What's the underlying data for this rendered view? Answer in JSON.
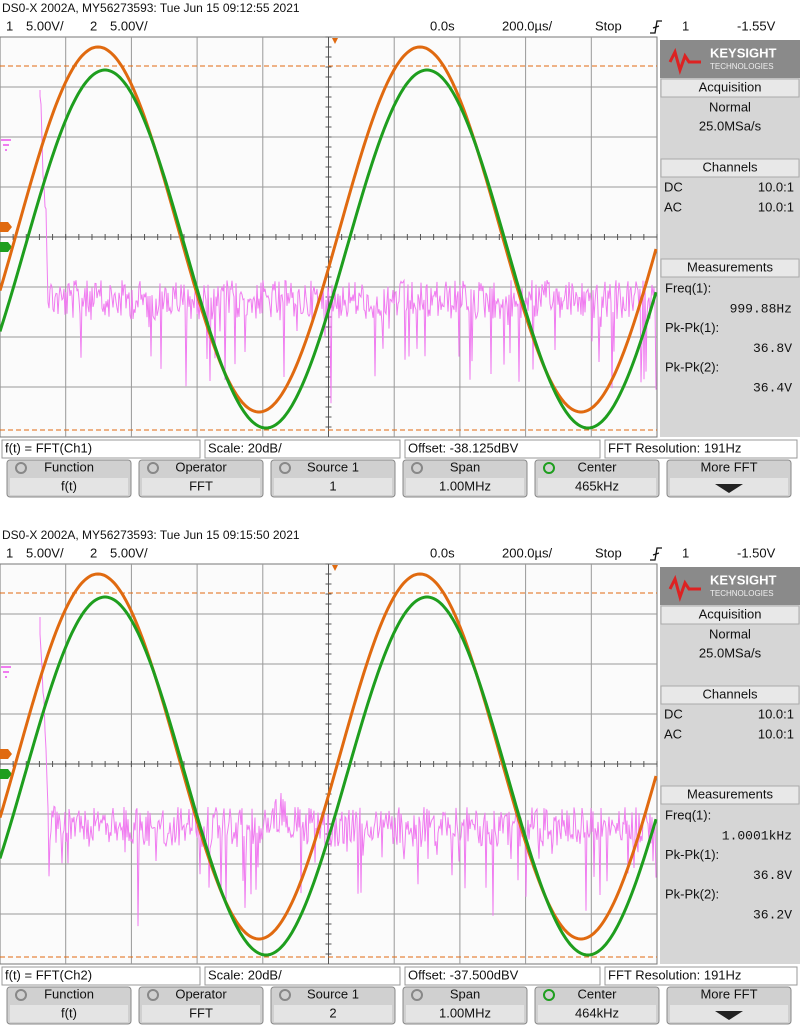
{
  "screens": [
    {
      "header": "DS0-X 2002A, MY56273593: Tue Jun 15 09:12:55 2021",
      "status": {
        "ch1_label": "1",
        "ch1_scale": "5.00V/",
        "ch2_label": "2",
        "ch2_scale": "5.00V/",
        "time_offset": "0.0s",
        "time_scale": "200.0µs/",
        "run_state": "Stop",
        "trigger_source": "1",
        "trigger_level": "-1.55V"
      },
      "panel": {
        "brand": "KEYSIGHT",
        "brand_sub": "TECHNOLOGIES",
        "acquisition": {
          "title": "Acquisition",
          "mode": "Normal",
          "rate": "25.0MSa/s"
        },
        "channels": {
          "title": "Channels",
          "rows": [
            {
              "coupling": "DC",
              "probe": "10.0:1"
            },
            {
              "coupling": "AC",
              "probe": "10.0:1"
            }
          ]
        },
        "measurements": {
          "title": "Measurements",
          "items": [
            {
              "label": "Freq(1):",
              "value": "999.88Hz"
            },
            {
              "label": "Pk-Pk(1):",
              "value": "36.8V"
            },
            {
              "label": "Pk-Pk(2):",
              "value": "36.4V"
            }
          ]
        }
      },
      "math_bar": {
        "function": "f(t) = FFT(Ch1)",
        "scale": "Scale: 20dB/",
        "offset": "Offset: -38.125dBV",
        "resolution": "FFT Resolution: 191Hz"
      },
      "softkeys": [
        {
          "label": "Function",
          "value": "f(t)"
        },
        {
          "label": "Operator",
          "value": "FFT"
        },
        {
          "label": "Source 1",
          "value": "1"
        },
        {
          "label": "Span",
          "value": "1.00MHz"
        },
        {
          "label": "Center",
          "value": "465kHz"
        },
        {
          "label": "More FFT"
        }
      ]
    },
    {
      "header": "DS0-X 2002A, MY56273593: Tue Jun 15 09:15:50 2021",
      "status": {
        "ch1_label": "1",
        "ch1_scale": "5.00V/",
        "ch2_label": "2",
        "ch2_scale": "5.00V/",
        "time_offset": "0.0s",
        "time_scale": "200.0µs/",
        "run_state": "Stop",
        "trigger_source": "1",
        "trigger_level": "-1.50V"
      },
      "panel": {
        "brand": "KEYSIGHT",
        "brand_sub": "TECHNOLOGIES",
        "acquisition": {
          "title": "Acquisition",
          "mode": "Normal",
          "rate": "25.0MSa/s"
        },
        "channels": {
          "title": "Channels",
          "rows": [
            {
              "coupling": "DC",
              "probe": "10.0:1"
            },
            {
              "coupling": "AC",
              "probe": "10.0:1"
            }
          ]
        },
        "measurements": {
          "title": "Measurements",
          "items": [
            {
              "label": "Freq(1):",
              "value": "1.0001kHz"
            },
            {
              "label": "Pk-Pk(1):",
              "value": "36.8V"
            },
            {
              "label": "Pk-Pk(2):",
              "value": "36.2V"
            }
          ]
        }
      },
      "math_bar": {
        "function": "f(t) = FFT(Ch2)",
        "scale": "Scale: 20dB/",
        "offset": "Offset: -37.500dBV",
        "resolution": "FFT Resolution: 191Hz"
      },
      "softkeys": [
        {
          "label": "Function",
          "value": "f(t)"
        },
        {
          "label": "Operator",
          "value": "FFT"
        },
        {
          "label": "Source 1",
          "value": "2"
        },
        {
          "label": "Span",
          "value": "1.00MHz"
        },
        {
          "label": "Center",
          "value": "464kHz"
        },
        {
          "label": "More FFT"
        }
      ]
    }
  ]
}
